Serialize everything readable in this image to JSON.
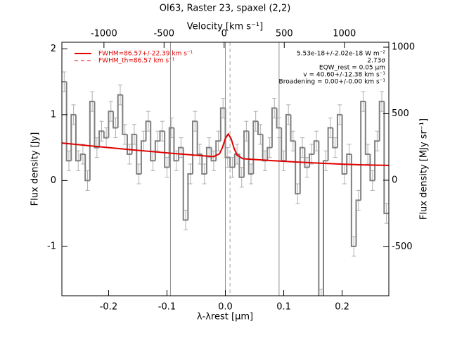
{
  "chart_data": {
    "type": "step",
    "title": "OI63, Raster 23, spaxel (2,2)",
    "x_label": "λ-λrest [μm]",
    "x2_label": "Velocity [km s⁻¹]",
    "y_label": "Flux density [Jy]",
    "y2_label": "Flux density [MJy sr⁻¹]",
    "xlim": [
      -0.28,
      0.28
    ],
    "xticks": [
      -0.2,
      -0.1,
      {
        "value": 0,
        "label": "0.0"
      },
      0.1,
      0.2
    ],
    "x2lim": [
      -1350,
      1370
    ],
    "x2ticks": [
      -1000,
      -500,
      0,
      500,
      1000
    ],
    "ylim": [
      -1.75,
      2.1
    ],
    "yticks": [
      -1,
      0,
      1,
      2
    ],
    "y2lim": [
      -868,
      1037
    ],
    "y2ticks": [
      -500,
      0,
      500,
      1000
    ],
    "x": [
      -0.276,
      -0.268,
      -0.26,
      -0.252,
      -0.244,
      -0.236,
      -0.228,
      -0.22,
      -0.212,
      -0.204,
      -0.196,
      -0.188,
      -0.18,
      -0.172,
      -0.164,
      -0.156,
      -0.148,
      -0.14,
      -0.132,
      -0.124,
      -0.116,
      -0.108,
      -0.1,
      -0.092,
      -0.084,
      -0.076,
      -0.068,
      -0.06,
      -0.052,
      -0.044,
      -0.036,
      -0.028,
      -0.02,
      -0.012,
      -0.004,
      0.004,
      0.012,
      0.02,
      0.028,
      0.036,
      0.044,
      0.052,
      0.06,
      0.068,
      0.076,
      0.084,
      0.092,
      0.1,
      0.108,
      0.116,
      0.124,
      0.132,
      0.14,
      0.148,
      0.156,
      0.164,
      0.172,
      0.18,
      0.188,
      0.196,
      0.204,
      0.212,
      0.22,
      0.228,
      0.236,
      0.244,
      0.252,
      0.26,
      0.268,
      0.276
    ],
    "series": [
      {
        "name": "spectrum",
        "color": "#808080",
        "error_color": "#b0b0b0",
        "values": [
          1.5,
          0.3,
          1.0,
          0.3,
          0.4,
          0.0,
          1.2,
          0.5,
          0.75,
          0.65,
          1.05,
          0.8,
          1.3,
          0.7,
          0.4,
          0.7,
          0.1,
          0.6,
          0.9,
          0.3,
          0.6,
          0.75,
          0.2,
          0.8,
          0.3,
          0.5,
          -0.6,
          0.1,
          0.9,
          0.4,
          0.1,
          0.5,
          0.3,
          0.6,
          1.1,
          0.35,
          0.2,
          0.4,
          0.05,
          0.75,
          0.1,
          0.9,
          0.7,
          0.3,
          0.5,
          1.1,
          0.8,
          0.3,
          1.0,
          0.6,
          -0.2,
          0.5,
          0.2,
          0.4,
          0.6,
          -1.8,
          0.3,
          0.8,
          0.5,
          1.0,
          0.1,
          0.4,
          -1.0,
          -0.3,
          1.2,
          0.4,
          0.0,
          0.6,
          1.2,
          -0.5
        ],
        "errors": [
          0.15,
          0.15,
          0.15,
          0.15,
          0.15,
          0.15,
          0.15,
          0.15,
          0.15,
          0.15,
          0.15,
          0.15,
          0.15,
          0.15,
          0.15,
          0.15,
          0.15,
          0.15,
          0.15,
          0.15,
          0.15,
          0.15,
          0.15,
          0.15,
          0.15,
          0.15,
          0.15,
          0.15,
          0.15,
          0.15,
          0.15,
          0.15,
          0.15,
          0.15,
          0.15,
          0.15,
          0.15,
          0.15,
          0.15,
          0.15,
          0.15,
          0.15,
          0.15,
          0.15,
          0.15,
          0.15,
          0.15,
          0.15,
          0.15,
          0.15,
          0.15,
          0.15,
          0.15,
          0.15,
          0.15,
          0.15,
          0.15,
          0.15,
          0.15,
          0.15,
          0.15,
          0.15,
          0.15,
          0.15,
          0.15,
          0.15,
          0.15,
          0.15,
          0.15,
          0.15
        ]
      }
    ],
    "fit": {
      "name": "FWHM=86.57+/-22.39 km s⁻¹",
      "color": "#e00000",
      "x": [
        -0.28,
        -0.24,
        -0.2,
        -0.16,
        -0.12,
        -0.08,
        -0.04,
        -0.02,
        -0.01,
        -0.005,
        0,
        0.005,
        0.01,
        0.015,
        0.02,
        0.03,
        0.04,
        0.08,
        0.12,
        0.16,
        0.2,
        0.24,
        0.28
      ],
      "values": [
        0.57,
        0.534,
        0.5,
        0.467,
        0.435,
        0.405,
        0.377,
        0.363,
        0.406,
        0.501,
        0.638,
        0.707,
        0.632,
        0.489,
        0.386,
        0.331,
        0.325,
        0.302,
        0.282,
        0.264,
        0.248,
        0.236,
        0.23
      ]
    },
    "fit_th_name": "FWHM_th=86.57 km s⁻¹",
    "vlines": [
      -0.094,
      0,
      0.092
    ],
    "vline_dashed": 0.008,
    "annotations": [
      "5.53e-18+/-2.02e-18 W m⁻²",
      "2.73σ",
      "EQW_rest = 0.05 μm",
      "v = 40.60+/-12.38 km s⁻¹",
      "Broadening = 0.00+/-0.00 km s⁻¹"
    ]
  }
}
